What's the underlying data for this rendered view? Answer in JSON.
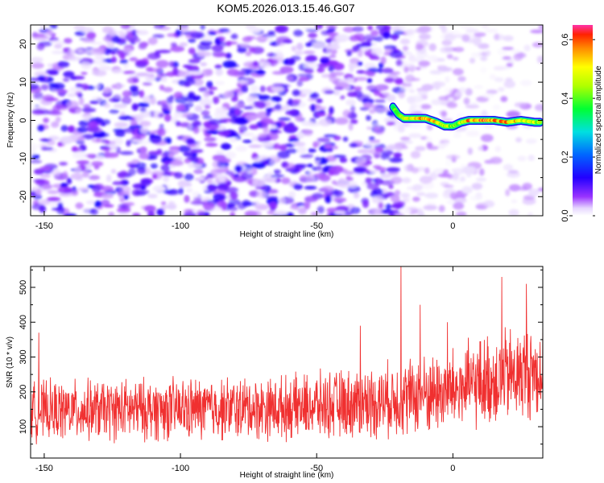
{
  "title": "KOM5.2026.013.15.46.G07",
  "chart_data": [
    {
      "type": "heatmap",
      "title": "KOM5.2026.013.15.46.G07",
      "xlabel": "Height of straight line (km)",
      "ylabel": "Frequency (Hz)",
      "xlim": [
        -155,
        33
      ],
      "ylim": [
        -25,
        25
      ],
      "xticks": [
        -150,
        -100,
        -50,
        0
      ],
      "xtick_labels": [
        "-150",
        "-100",
        "-50",
        "0"
      ],
      "yticks": [
        -20,
        -10,
        0,
        10,
        20
      ],
      "ytick_labels": [
        "-20",
        "-10",
        "0",
        "10",
        "20"
      ],
      "ridge": {
        "description_points_x": [
          -22,
          -20,
          -18,
          -14,
          -10,
          -6,
          -3,
          0,
          3,
          6,
          10,
          15,
          20,
          25,
          30,
          32
        ],
        "description_points_y": [
          3.5,
          1.5,
          0.5,
          0.5,
          0.5,
          -0.5,
          -1.5,
          -1.5,
          -0.5,
          0,
          0,
          0,
          -0.5,
          0,
          -0.5,
          -0.5
        ],
        "amplitude": [
          0.35,
          0.4,
          0.45,
          0.5,
          0.55,
          0.5,
          0.45,
          0.4,
          0.45,
          0.55,
          0.6,
          0.55,
          0.55,
          0.5,
          0.45,
          0.4
        ]
      },
      "colorbar": {
        "label": "Normalized spectral amplitude",
        "range": [
          0,
          0.65
        ],
        "ticks": [
          0.0,
          0.2,
          0.4,
          0.6
        ],
        "tick_labels": [
          "0.0",
          "0.2",
          "0.4",
          "0.6"
        ]
      }
    },
    {
      "type": "line",
      "xlabel": "Height of straight line (km)",
      "ylabel": "SNR (10 * v/v)",
      "xlim": [
        -155,
        33
      ],
      "ylim": [
        10,
        560
      ],
      "xticks": [
        -150,
        -100,
        -50,
        0
      ],
      "xtick_labels": [
        "-150",
        "-100",
        "-50",
        "0"
      ],
      "yticks": [
        100,
        200,
        300,
        400,
        500
      ],
      "ytick_labels": [
        "100",
        "200",
        "300",
        "400",
        "500"
      ],
      "series": [
        {
          "name": "SNR",
          "color": "#f03030",
          "trend_x": [
            -155,
            -100,
            -60,
            -30,
            0,
            20,
            33
          ],
          "trend_y": [
            145,
            150,
            155,
            170,
            205,
            245,
            260
          ],
          "noise_amplitude": [
            70,
            75,
            75,
            85,
            100,
            115,
            110
          ],
          "peaks": [
            {
              "x": -19,
              "y": 560
            },
            {
              "x": 18,
              "y": 530
            },
            {
              "x": 27,
              "y": 510
            },
            {
              "x": -12,
              "y": 450
            },
            {
              "x": -2,
              "y": 400
            },
            {
              "x": -34,
              "y": 390
            },
            {
              "x": -152,
              "y": 370
            }
          ]
        }
      ]
    }
  ]
}
